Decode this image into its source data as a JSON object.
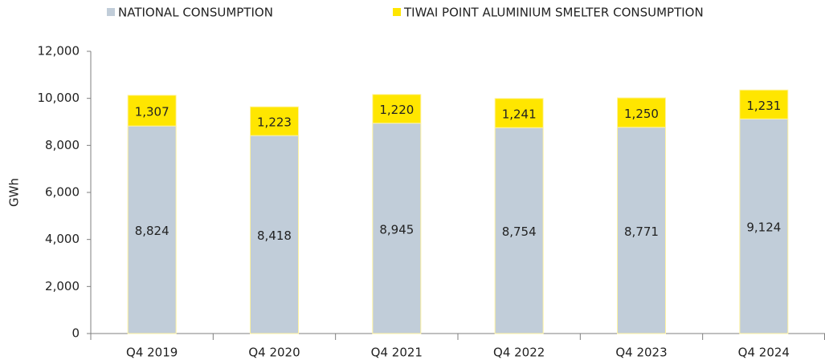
{
  "chart_data": {
    "type": "stacked_bar",
    "y_label": "GWh",
    "categories": [
      "Q4 2019",
      "Q4 2020",
      "Q4 2021",
      "Q4 2022",
      "Q4 2023",
      "Q4 2024"
    ],
    "series": [
      {
        "name": "NATIONAL CONSUMPTION",
        "color": "#c1cdd9",
        "values": [
          8824,
          8418,
          8945,
          8754,
          8771,
          9124
        ],
        "value_labels": [
          "8,824",
          "8,418",
          "8,945",
          "8,754",
          "8,771",
          "9,124"
        ]
      },
      {
        "name": "TIWAI POINT ALUMINIUM SMELTER CONSUMPTION",
        "color": "#ffe600",
        "values": [
          1307,
          1223,
          1220,
          1241,
          1250,
          1231
        ],
        "value_labels": [
          "1,307",
          "1,223",
          "1,220",
          "1,241",
          "1,250",
          "1,231"
        ]
      }
    ],
    "ylim": [
      0,
      12000
    ],
    "yticks": [
      0,
      {
        "value": 2000,
        "label": "2,000"
      },
      {
        "value": 4000,
        "label": "4,000"
      },
      {
        "value": 6000,
        "label": "6,000"
      },
      {
        "value": 8000,
        "label": "8,000"
      },
      {
        "value": 10000,
        "label": "10,000"
      },
      {
        "value": 12000,
        "label": "12,000"
      }
    ],
    "legend": "top",
    "grid": false
  }
}
